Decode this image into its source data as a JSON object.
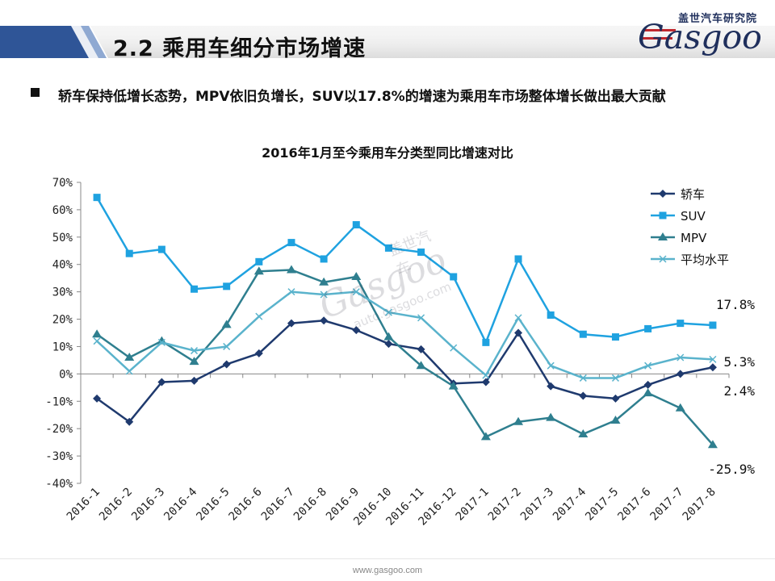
{
  "header": {
    "title": "2.2 乘用车细分市场增速",
    "brand_cn": "盖世汽车研究院",
    "brand": "Gasgoo",
    "accent": "#2f5597"
  },
  "bullet": {
    "text": "轿车保持低增长态势，MPV依旧负增长，SUV以17.8%的增速为乘用车市场整体增长做出最大贡献"
  },
  "watermark": {
    "cn": "盖世汽车",
    "brand": "Gasgoo",
    "url": "auto.gasgoo.com"
  },
  "footer": {
    "url": "www.gasgoo.com"
  },
  "chart_data": {
    "type": "line",
    "title": "2016年1月至今乘用车分类型同比增速对比",
    "categories": [
      "2016-1",
      "2016-2",
      "2016-3",
      "2016-4",
      "2016-5",
      "2016-6",
      "2016-7",
      "2016-8",
      "2016-9",
      "2016-10",
      "2016-11",
      "2016-12",
      "2017-1",
      "2017-2",
      "2017-3",
      "2017-4",
      "2017-5",
      "2017-6",
      "2017-7",
      "2017-8"
    ],
    "ylim": [
      -40,
      70
    ],
    "yticks": [
      "-40%",
      "-30%",
      "-20%",
      "-10%",
      "0%",
      "10%",
      "20%",
      "30%",
      "40%",
      "50%",
      "60%",
      "70%"
    ],
    "legend_position": "top-right",
    "series": [
      {
        "name": "轿车",
        "color": "#1f3a6e",
        "marker": "diamond",
        "values": [
          -9,
          -17.5,
          -3,
          -2.5,
          3.5,
          7.5,
          18.5,
          19.5,
          16,
          11,
          9,
          -3.5,
          -3,
          15,
          -4.5,
          -8,
          -9,
          -4,
          0,
          2.4
        ]
      },
      {
        "name": "SUV",
        "color": "#1fa2e0",
        "marker": "square",
        "values": [
          64.5,
          44,
          45.5,
          31,
          32,
          41,
          48,
          42,
          54.5,
          46,
          44.5,
          35.5,
          11.5,
          42,
          21.5,
          14.5,
          13.5,
          16.5,
          18.5,
          17.8
        ]
      },
      {
        "name": "MPV",
        "color": "#2f7f8f",
        "marker": "triangle",
        "values": [
          14.5,
          6,
          12,
          4.5,
          18,
          37.5,
          38,
          33.5,
          35.5,
          13.5,
          3,
          -4.5,
          -23,
          -17.5,
          -16,
          -22,
          -17,
          -7,
          -12.5,
          -25.9
        ]
      },
      {
        "name": "平均水平",
        "color": "#5ab3cc",
        "marker": "x",
        "values": [
          12,
          1,
          11.5,
          8.5,
          10,
          21,
          30,
          29,
          30,
          22.5,
          20.5,
          9.5,
          -0.5,
          20.5,
          3,
          -1.5,
          -1.5,
          3,
          6,
          5.3
        ]
      }
    ],
    "end_labels": [
      "17.8%",
      "5.3%",
      "2.4%",
      "-25.9%"
    ]
  }
}
